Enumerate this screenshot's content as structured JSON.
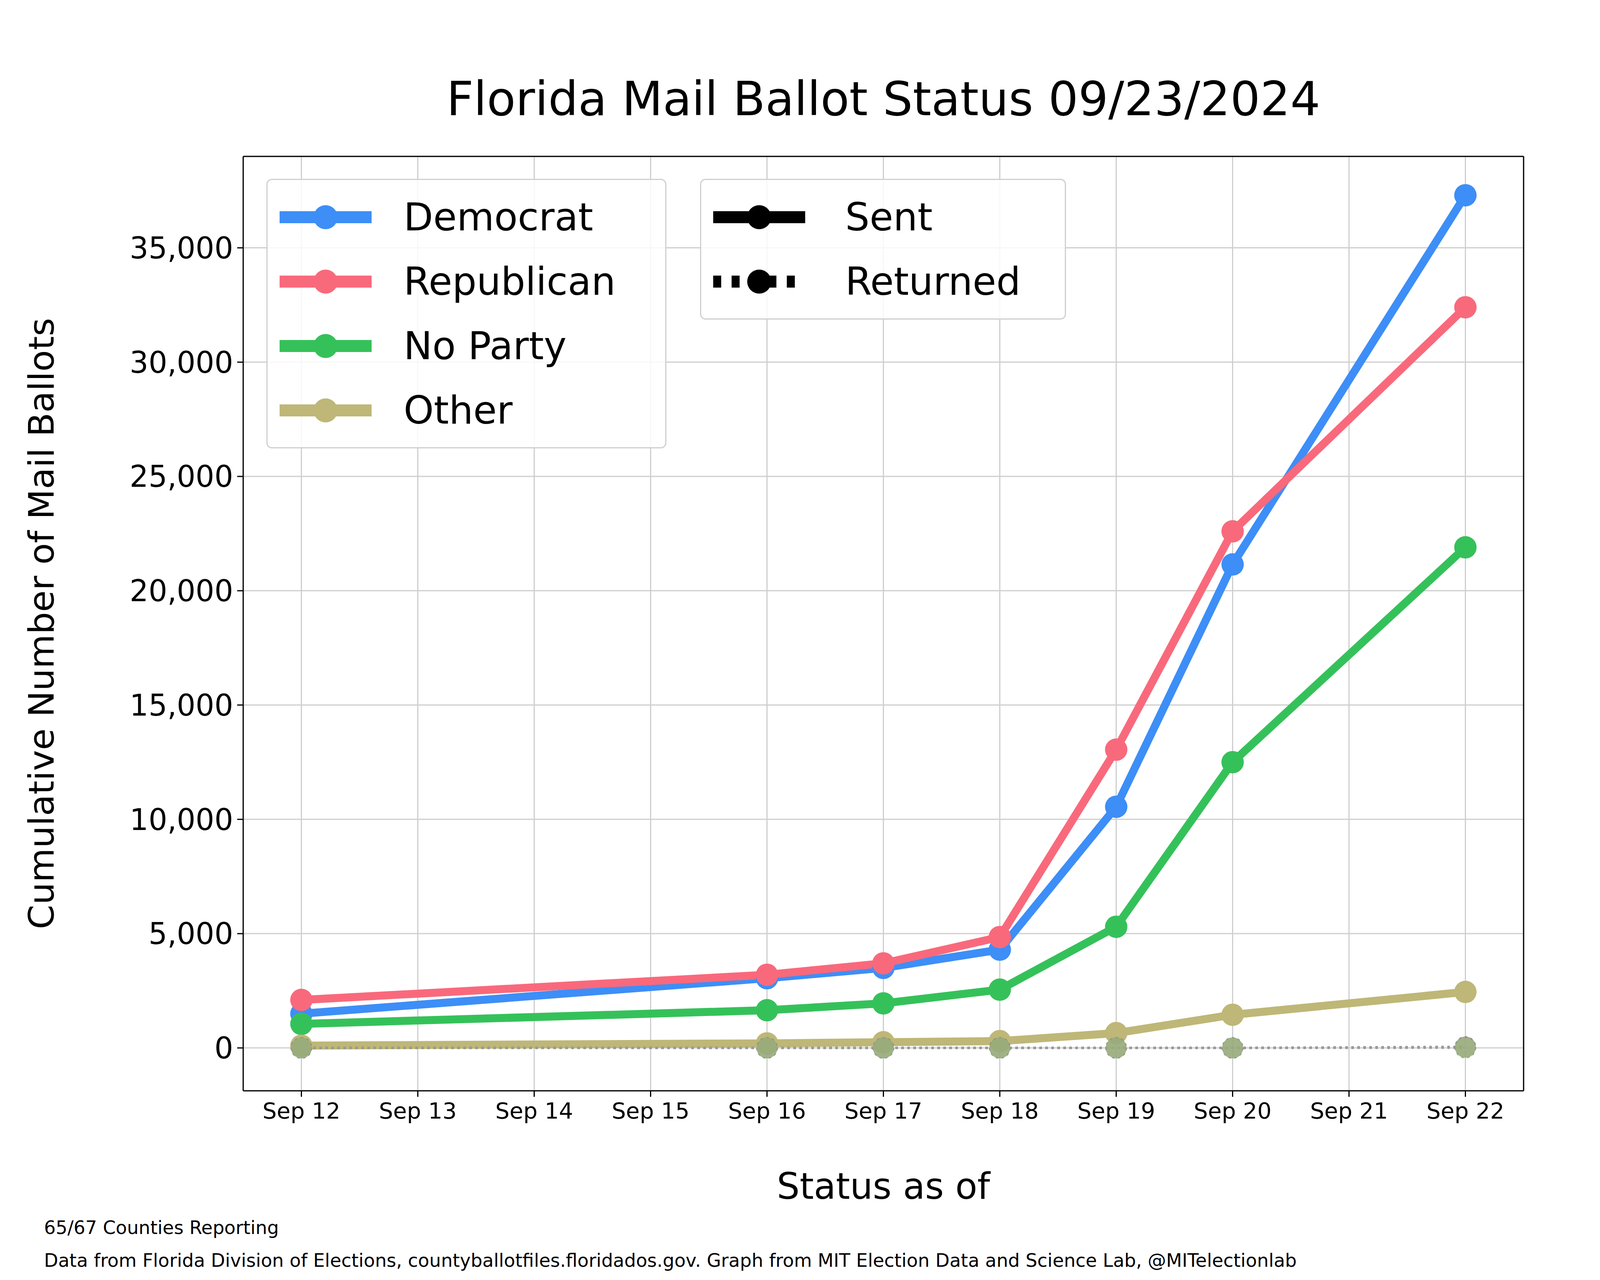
{
  "chart_data": {
    "type": "line",
    "title": "Florida Mail Ballot Status 09/23/2024",
    "x_label": "Status as of",
    "y_label": "Cumulative Number of Mail Ballots",
    "x": [
      12,
      16,
      17,
      18,
      19,
      20,
      22
    ],
    "xlim": [
      11.5,
      22.5
    ],
    "xticks": [
      {
        "value": 12,
        "label": "Sep 12"
      },
      {
        "value": 13,
        "label": "Sep 13"
      },
      {
        "value": 14,
        "label": "Sep 14"
      },
      {
        "value": 15,
        "label": "Sep 15"
      },
      {
        "value": 16,
        "label": "Sep 16"
      },
      {
        "value": 17,
        "label": "Sep 17"
      },
      {
        "value": 18,
        "label": "Sep 18"
      },
      {
        "value": 19,
        "label": "Sep 19"
      },
      {
        "value": 20,
        "label": "Sep 20"
      },
      {
        "value": 21,
        "label": "Sep 21"
      },
      {
        "value": 22,
        "label": "Sep 22"
      }
    ],
    "ylim": [
      -1875,
      39000
    ],
    "yticks": [
      0,
      {
        "value": 5000,
        "label": "5,000"
      },
      {
        "value": 10000,
        "label": "10,000"
      },
      {
        "value": 15000,
        "label": "15,000"
      },
      {
        "value": 20000,
        "label": "20,000"
      },
      {
        "value": 25000,
        "label": "25,000"
      },
      {
        "value": 30000,
        "label": "30,000"
      },
      {
        "value": 35000,
        "label": "35,000"
      }
    ],
    "grid": true,
    "legend": "upper left",
    "marker": "o",
    "series": [
      {
        "name": "Democrat",
        "color": "#3d8ef7",
        "values": [
          1500,
          3050,
          3500,
          4300,
          10550,
          21150,
          37300
        ],
        "returned": [
          0,
          0,
          0,
          0,
          0,
          0,
          40
        ]
      },
      {
        "name": "Republican",
        "color": "#f9697c",
        "values": [
          2100,
          3200,
          3700,
          4850,
          13050,
          22600,
          32400
        ],
        "returned": [
          0,
          0,
          0,
          0,
          0,
          0,
          50
        ]
      },
      {
        "name": "No Party",
        "color": "#35c15a",
        "values": [
          1050,
          1650,
          1950,
          2550,
          5300,
          12500,
          21900
        ],
        "returned": [
          0,
          0,
          0,
          0,
          0,
          0,
          30
        ]
      },
      {
        "name": "Other",
        "color": "#beb777",
        "values": [
          100,
          200,
          250,
          300,
          650,
          1450,
          2450
        ],
        "returned": [
          0,
          0,
          0,
          0,
          0,
          0,
          5
        ]
      }
    ],
    "status_legend": [
      {
        "name": "Sent",
        "line_style": "solid"
      },
      {
        "name": "Returned",
        "line_style": "dotted"
      }
    ],
    "footnotes": [
      "65/67 Counties Reporting",
      "Data from Florida Division of Elections, countyballotfiles.floridados.gov. Graph from MIT Election Data and Science Lab, @MITelectionlab"
    ]
  }
}
